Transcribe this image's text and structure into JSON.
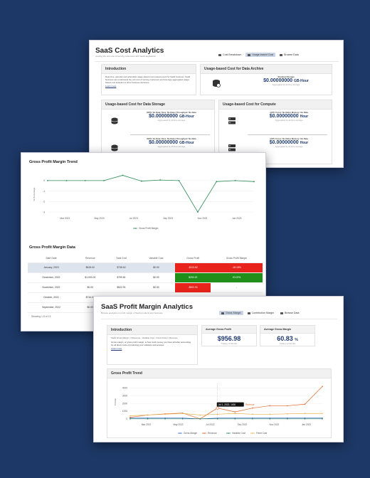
{
  "cost": {
    "title": "SaaS Cost Analytics",
    "subtitle": "viewing the unit cost of serving customers with SaaS application",
    "tabs": [
      {
        "label": "Cost Breakdown"
      },
      {
        "label": "Usage-based Cost"
      },
      {
        "label": "Browse Data"
      }
    ],
    "intro": {
      "title": "Introduction",
      "text": "Real-time, granular and actionable usage-based cost measurement for SaaS business. SaaS business can understand the unit cost of serving customers and leverage aggregated usage-based cost analytics to drive business decisions.",
      "link": "Learn more"
    },
    "archive": {
      "title": "Usage-based Cost for Data Archive",
      "label": "Standard Storage",
      "value": "$0.00000000",
      "unit": "GB-Hour",
      "agg": "Aggregated by all time average"
    },
    "storage": {
      "title": "Usage-based Cost for Data Storage",
      "items": [
        {
          "dims": "IOPS: No Data | Size: No Data | Throughput: No Data",
          "value": "$0.00000000",
          "unit": "GB-Hour",
          "agg": "Aggregated by all time average"
        },
        {
          "dims": "IOPS: No Data | Size: No Data | Throughput: No Data",
          "value": "$0.00000000",
          "unit": "GB-Hour",
          "agg": "Aggregated by all time average"
        }
      ]
    },
    "compute": {
      "title": "Usage-based Cost for Compute",
      "items": [
        {
          "dims": "vCPU Cores: No Data | Memory: No Data",
          "value": "$0.00000000",
          "unit": "Hour",
          "agg": "Aggregated by all time average"
        },
        {
          "dims": "vCPU Cores: No Data | Memory: No Data",
          "value": "$0.00000000",
          "unit": "Hour",
          "agg": "Aggregated by all time average"
        }
      ]
    }
  },
  "gpm_trend": {
    "title": "Gross Profit Margin Trend",
    "chart_data": {
      "type": "line",
      "ylabel": "% Percentage",
      "yticks": [
        "0",
        "-1",
        "-2",
        "-3"
      ],
      "ylim": [
        -3.2,
        0.6
      ],
      "xticks": [
        "Mar 2023",
        "May 2023",
        "Jul 2023",
        "Sep 2023",
        "Nov 2023",
        "Jan 2023"
      ],
      "series": [
        {
          "name": "Gross Profit Margin",
          "color": "#2e8b57",
          "values": [
            0,
            0,
            0,
            0,
            0.5,
            -0.05,
            0.05,
            0,
            -3,
            -0.1,
            0,
            -0.1
          ]
        }
      ]
    }
  },
  "gpm_data": {
    "title": "Gross Profit Margin Data",
    "columns": [
      "Start Date",
      "Revenue",
      "Total Cost",
      "Variable Cost",
      "Gross Profit",
      "Gross Profit Margin"
    ],
    "rows": [
      [
        "January, 2023",
        "$626.00",
        "$738.62",
        "$0.00",
        "-$113.62",
        "-18.15%"
      ],
      [
        "December, 2022",
        "$1,000.00",
        "$799.81",
        "$0.00",
        "$200.19",
        "20.02%"
      ],
      [
        "November, 2022",
        "$0.00",
        "$522.91",
        "$0.00",
        "-$522.91",
        "-"
      ],
      [
        "October, 2022",
        "$744.00",
        "",
        "",
        "",
        ""
      ],
      [
        "September, 2022",
        "$0.00",
        "",
        "",
        "",
        ""
      ]
    ],
    "footer": "Showing 1-5 of 13"
  },
  "profit": {
    "title": "SaaS Profit Margin Analytics",
    "subtitle": "Browse analytics on profit margin of SaaS products and business",
    "tabs": [
      {
        "label": "Gross Margin"
      },
      {
        "label": "Contribution Margin"
      },
      {
        "label": "Browse Data"
      }
    ],
    "intro": {
      "title": "Introduction",
      "formula": "SaaS Gross Margin = (Revenue - Variable Cost - Fixed Costs) / Revenue",
      "text": "Gross margin, or gross profit margin, is how much money you have left after accounting for all direct costs of producing your software and services.",
      "link": "Learn more"
    },
    "kpi1": {
      "title": "Average Gross Profit",
      "value": "$956.98",
      "sub": "Trailing 12 Months"
    },
    "kpi2": {
      "title": "Average Gross Margin",
      "value": "60.83",
      "unit": "%",
      "sub": "Trailing 12 Months"
    },
    "trend": {
      "title": "Gross Profit Trend",
      "tooltip": "Jul 1, 2022, 1400",
      "tooltip_label": "Revenue",
      "chart_data": {
        "type": "line",
        "ylabel": "$ Dollar",
        "yticks": [
          "4000",
          "3000",
          "2000",
          "1000",
          "0"
        ],
        "ylim": [
          -200,
          4600
        ],
        "xticks": [
          "Mar 2022",
          "May 2022",
          "Jul 2022",
          "Sep 2022",
          "Nov 2022",
          "Jan 2023"
        ],
        "series": [
          {
            "name": "Gross Margin",
            "color": "#3b6fc4",
            "values": [
              100,
              100,
              100,
              100,
              0,
              100,
              100,
              100,
              100,
              100,
              100,
              100
            ]
          },
          {
            "name": "Revenue",
            "color": "#e06a2a",
            "values": [
              200,
              500,
              650,
              750,
              0,
              1400,
              900,
              1400,
              1700,
              1700,
              1900,
              4200
            ]
          },
          {
            "name": "Variable Cost",
            "color": "#2e7d6b",
            "values": [
              0,
              0,
              0,
              0,
              0,
              0,
              0,
              0,
              0,
              0,
              0,
              0
            ]
          },
          {
            "name": "Fixed Cost",
            "color": "#e8b04a",
            "values": [
              400,
              500,
              600,
              700,
              500,
              600,
              700,
              600,
              600,
              650,
              700,
              700
            ]
          }
        ]
      }
    }
  }
}
